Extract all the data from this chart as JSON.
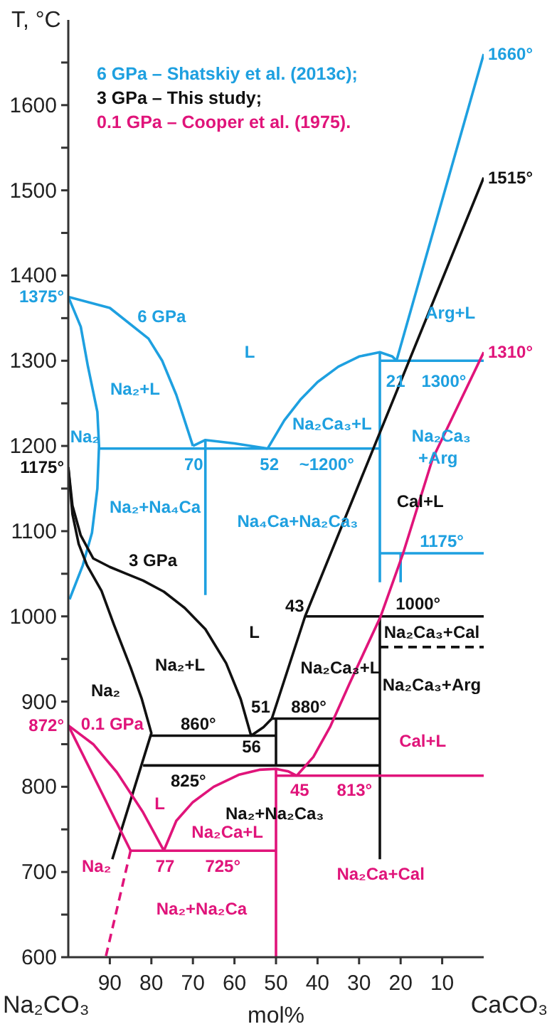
{
  "chart_data": {
    "type": "line",
    "ylabel": "T, °C",
    "xlabel": "mol%",
    "xlim": [
      100,
      0
    ],
    "ylim": [
      600,
      1700
    ],
    "xticks": [
      90,
      80,
      70,
      60,
      50,
      40,
      30,
      20,
      10
    ],
    "yticks": [
      600,
      {
        "value": 650,
        "label": null
      },
      700,
      {
        "value": 750,
        "label": null
      },
      800,
      {
        "value": 850,
        "label": null
      },
      900,
      {
        "value": 950,
        "label": null
      },
      1000,
      {
        "value": 1050,
        "label": null
      },
      1100,
      {
        "value": 1150,
        "label": null
      },
      1200,
      {
        "value": 1250,
        "label": null
      },
      1300,
      {
        "value": 1350,
        "label": null
      },
      1400,
      {
        "value": 1450,
        "label": null
      },
      1500,
      {
        "value": 1550,
        "label": null
      },
      1600,
      {
        "value": 1650,
        "label": null
      }
    ],
    "legend": "top left",
    "line_style": "solid",
    "series": [
      {
        "name": "6 GPa – Shatskiy et al. (2013c);",
        "color": "#1ea0e0",
        "x": [
          100,
          90,
          80.7,
          77.4,
          74,
          70
        ],
        "values": [
          1375,
          1362,
          1326,
          1300,
          1260,
          1200
        ]
      },
      {
        "color": "#1ea0e0",
        "x": [
          100,
          97,
          95.3,
          93,
          92.6,
          93,
          94.3,
          96.5,
          99.7
        ],
        "values": [
          1375,
          1340,
          1294,
          1240,
          1200,
          1150,
          1098,
          1060,
          1020
        ]
      },
      {
        "color": "#1ea0e0",
        "x": [
          92.6,
          25
        ],
        "values": [
          1197,
          1197
        ]
      },
      {
        "color": "#1ea0e0",
        "x": [
          70,
          67,
          60,
          52
        ],
        "values": [
          1200,
          1207,
          1203,
          1197
        ]
      },
      {
        "color": "#1ea0e0",
        "x": [
          67,
          67
        ],
        "values": [
          1207,
          1025
        ]
      },
      {
        "color": "#1ea0e0",
        "x": [
          52,
          48,
          44,
          40,
          35,
          30,
          25,
          22,
          21
        ],
        "values": [
          1197,
          1230,
          1255,
          1275,
          1293,
          1305,
          1310,
          1305,
          1300
        ]
      },
      {
        "color": "#1ea0e0",
        "x": [
          21,
          0
        ],
        "values": [
          1300,
          1660
        ]
      },
      {
        "color": "#1ea0e0",
        "x": [
          25,
          25
        ],
        "values": [
          1310,
          1040
        ]
      },
      {
        "color": "#1ea0e0",
        "x": [
          25,
          0
        ],
        "values": [
          1300,
          1300
        ]
      },
      {
        "color": "#1ea0e0",
        "x": [
          25,
          0
        ],
        "values": [
          1074,
          1074
        ]
      },
      {
        "color": "#1ea0e0",
        "x": [
          20,
          20
        ],
        "values": [
          1074,
          1040
        ]
      },
      {
        "name": "3 GPa – This study;",
        "color": "#111111",
        "x": [
          51,
          43,
          0
        ],
        "values": [
          880,
          1000,
          1515
        ]
      },
      {
        "color": "#111111",
        "x": [
          100,
          99,
          97,
          94,
          90,
          86,
          82,
          77,
          72,
          67,
          62,
          58.5,
          56,
          53,
          51
        ],
        "values": [
          1175,
          1130,
          1095,
          1068,
          1058,
          1050,
          1042,
          1029,
          1010,
          985,
          945,
          903,
          860,
          870,
          880
        ]
      },
      {
        "color": "#111111",
        "x": [
          100,
          99,
          97.5,
          95.5,
          92,
          89,
          85,
          82.3,
          80,
          89.4
        ],
        "values": [
          1175,
          1120,
          1085,
          1060,
          1030,
          990,
          940,
          903,
          863,
          715
        ]
      },
      {
        "color": "#111111",
        "x": [
          80,
          50
        ],
        "values": [
          860,
          860
        ]
      },
      {
        "color": "#111111",
        "x": [
          51,
          25
        ],
        "values": [
          880,
          880
        ]
      },
      {
        "color": "#111111",
        "x": [
          82,
          25
        ],
        "values": [
          825,
          825
        ]
      },
      {
        "color": "#111111",
        "x": [
          50,
          50
        ],
        "values": [
          880,
          825
        ]
      },
      {
        "color": "#111111",
        "x": [
          25,
          25
        ],
        "values": [
          1000,
          715
        ]
      },
      {
        "color": "#111111",
        "x": [
          43,
          0
        ],
        "values": [
          1000,
          1000
        ]
      },
      {
        "color": "#111111",
        "line_style": "dashed",
        "x": [
          25,
          0
        ],
        "values": [
          964,
          964
        ]
      },
      {
        "name": "0.1 GPa – Cooper et al. (1975).",
        "color": "#e0147a",
        "x": [
          0,
          12.3,
          19.4,
          24.8,
          32.4,
          37,
          41,
          45
        ],
        "values": [
          1310,
          1185,
          1074,
          1000,
          920,
          870,
          835,
          813
        ]
      },
      {
        "color": "#e0147a",
        "x": [
          50,
          0
        ],
        "values": [
          813,
          813
        ]
      },
      {
        "color": "#e0147a",
        "x": [
          77,
          74,
          70,
          65,
          59,
          54,
          50,
          47,
          45
        ],
        "values": [
          725,
          760,
          782,
          800,
          814,
          820,
          821,
          818,
          813
        ]
      },
      {
        "color": "#e0147a",
        "x": [
          85,
          50
        ],
        "values": [
          725,
          725
        ]
      },
      {
        "color": "#e0147a",
        "x": [
          100,
          94,
          88.3,
          82,
          77
        ],
        "values": [
          872,
          850,
          817,
          770,
          725
        ]
      },
      {
        "color": "#e0147a",
        "x": [
          100,
          85
        ],
        "values": [
          872,
          725
        ]
      },
      {
        "color": "#e0147a",
        "line_style": "dashed",
        "x": [
          85,
          91
        ],
        "values": [
          725,
          600
        ]
      },
      {
        "color": "#e0147a",
        "x": [
          50,
          50
        ],
        "values": [
          821,
          600
        ]
      }
    ],
    "annotations": [
      "1375°",
      "1660°",
      "6 GPa",
      "L",
      "Na₂+L",
      "Na₂",
      "70",
      "52",
      "~1200°",
      "Na₂Ca₃+L",
      "21",
      "1300°",
      "Arg+L",
      "Na₂Ca₃",
      "+Arg",
      "Na₂+Na₄Ca",
      "Na₄Ca+Na₂Ca₃",
      "1175°",
      "1175°",
      "1515°",
      "3 GPa",
      "L",
      "Na₂+L",
      "Na₂",
      "43",
      "51",
      "56",
      "860°",
      "880°",
      "825°",
      "Na₂+Na₂Ca₃",
      "Na₂Ca₃+L",
      "1000°",
      "Na₂Ca₃+Cal",
      "Na₂Ca₃+Arg",
      "Cal+L",
      "872°",
      "1310°",
      "0.1 GPa",
      "L",
      "Na₂",
      "77",
      "725°",
      "Na₂Ca+L",
      "Na₂+Na₂Ca",
      "45",
      "813°",
      "Cal+L",
      "Na₂Ca+Cal",
      "Na₂CO₃",
      "CaCO₃"
    ]
  }
}
